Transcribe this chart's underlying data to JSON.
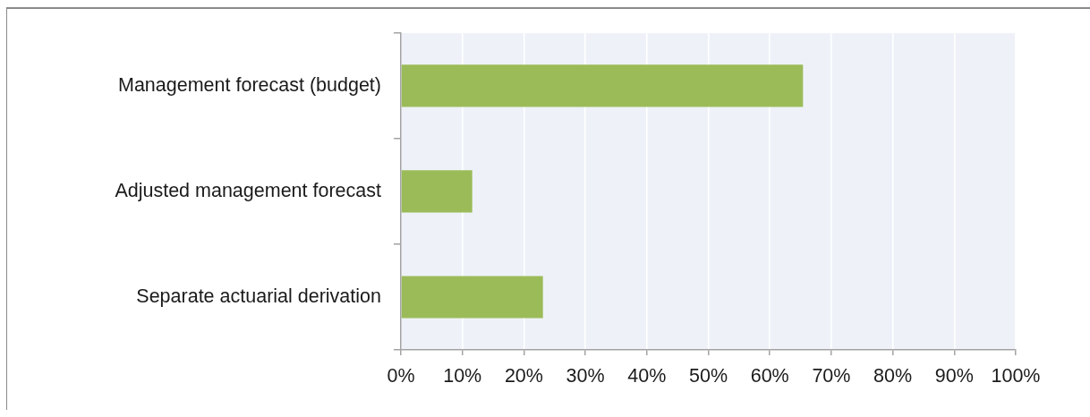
{
  "chart_data": {
    "type": "bar",
    "orientation": "horizontal",
    "categories": [
      "Management forecast (budget)",
      "Adjusted management forecast",
      "Separate actuarial derivation"
    ],
    "values": [
      65.4,
      11.6,
      23.1
    ],
    "color": "#9bbb59",
    "xlim": [
      0,
      100
    ],
    "xticks": [
      {
        "value": 0,
        "label": "0%"
      },
      {
        "value": 10,
        "label": "10%"
      },
      {
        "value": 20,
        "label": "20%"
      },
      {
        "value": 30,
        "label": "30%"
      },
      {
        "value": 40,
        "label": "40%"
      },
      {
        "value": 50,
        "label": "50%"
      },
      {
        "value": 60,
        "label": "60%"
      },
      {
        "value": 70,
        "label": "70%"
      },
      {
        "value": 80,
        "label": "80%"
      },
      {
        "value": 90,
        "label": "90%"
      },
      {
        "value": 100,
        "label": "100%"
      }
    ],
    "grid": "x"
  }
}
